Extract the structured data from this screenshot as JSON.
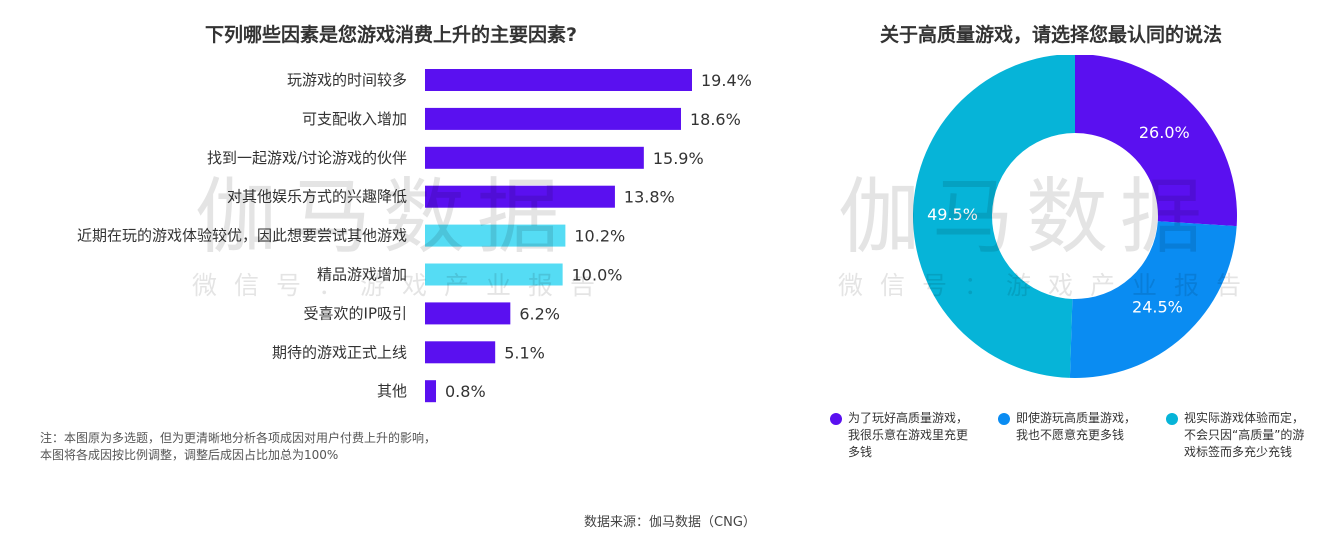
{
  "left_title": "下列哪些因素是您游戏消费上升的主要因素?",
  "right_title": "关于高质量游戏，请选择您最认同的说法",
  "note_lines": [
    "注：本图原为多选题，但为更清晰地分析各项成因对用户付费上升的影响，",
    "本图将各成因按比例调整，调整后成因占比加总为100%"
  ],
  "source": "数据来源：伽马数据（CNG）",
  "watermark": {
    "big": "伽马数据",
    "small": "微信号：游戏产业报告"
  },
  "colors": {
    "purple": "#5a10f0",
    "cyan": "#55dcf4",
    "blue": "#0a8cf2",
    "teal": "#06b4d8"
  },
  "chart_data": [
    {
      "type": "bar",
      "orientation": "horizontal",
      "title": "下列哪些因素是您游戏消费上升的主要因素?",
      "categories": [
        "玩游戏的时间较多",
        "可支配收入增加",
        "找到一起游戏/讨论游戏的伙伴",
        "对其他娱乐方式的兴趣降低",
        "近期在玩的游戏体验较优，因此想要尝试其他游戏",
        "精品游戏增加",
        "受喜欢的IP吸引",
        "期待的游戏正式上线",
        "其他"
      ],
      "values": [
        19.4,
        18.6,
        15.9,
        13.8,
        10.2,
        10.0,
        6.2,
        5.1,
        0.8
      ],
      "value_labels": [
        "19.4%",
        "18.6%",
        "15.9%",
        "13.8%",
        "10.2%",
        "10.0%",
        "6.2%",
        "5.1%",
        "0.8%"
      ],
      "bar_colors": [
        "#5a10f0",
        "#5a10f0",
        "#5a10f0",
        "#5a10f0",
        "#55dcf4",
        "#55dcf4",
        "#5a10f0",
        "#5a10f0",
        "#5a10f0"
      ],
      "xlim": [
        0,
        19.4
      ],
      "grid": false
    },
    {
      "type": "pie",
      "style": "donut",
      "title": "关于高质量游戏，请选择您最认同的说法",
      "slices": [
        {
          "label": "为了玩好高质量游戏，我很乐意在游戏里充更多钱",
          "value": 26.0,
          "value_label": "26.0%",
          "color": "#5a10f0"
        },
        {
          "label": "即使游玩高质量游戏，我也不愿意充更多钱",
          "value": 24.5,
          "value_label": "24.5%",
          "color": "#0a8cf2"
        },
        {
          "label": "视实际游戏体验而定，不会只因“高质量”的游戏标签而多充少充钱",
          "value": 49.5,
          "value_label": "49.5%",
          "color": "#06b4d8"
        }
      ],
      "legend_position": "bottom"
    }
  ]
}
